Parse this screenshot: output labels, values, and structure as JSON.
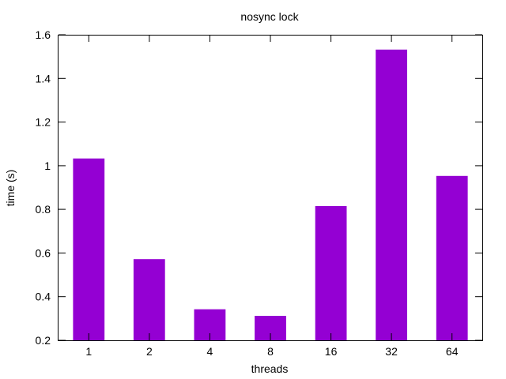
{
  "chart_data": {
    "type": "bar",
    "title": "nosync lock",
    "xlabel": "threads",
    "ylabel": "time (s)",
    "categories": [
      "1",
      "2",
      "4",
      "8",
      "16",
      "32",
      "64"
    ],
    "values": [
      1.033,
      0.572,
      0.342,
      0.312,
      0.815,
      1.532,
      0.953
    ],
    "ylim": [
      0.2,
      1.6
    ],
    "yticks": [
      "0.2",
      "0.4",
      "0.6",
      "0.8",
      "1",
      "1.2",
      "1.4",
      "1.6"
    ],
    "bar_color": "#9400d3",
    "grid": false,
    "legend": "none"
  }
}
